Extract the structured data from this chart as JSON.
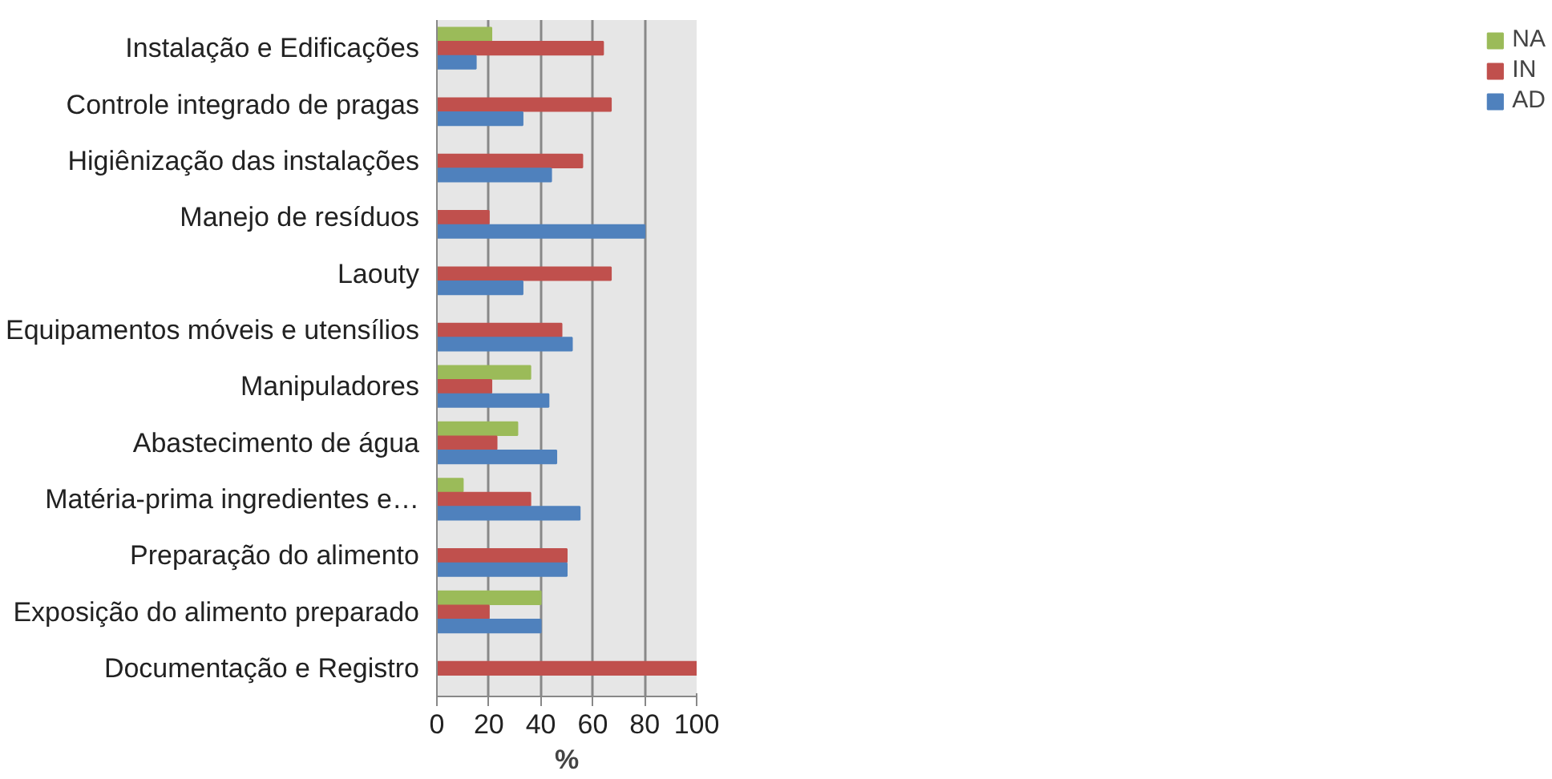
{
  "chart_data": {
    "type": "bar",
    "orientation": "horizontal",
    "xlabel": "%",
    "categories": [
      "Instalação e Edificações",
      "Controle integrado de pragas",
      "Higiênização das instalações",
      "Manejo de resíduos",
      "Laouty",
      "Equipamentos móveis e utensílios",
      "Manipuladores",
      "Abastecimento de água",
      "Matéria-prima ingredientes e…",
      "Preparação do alimento",
      "Exposição do alimento preparado",
      "Documentação e Registro"
    ],
    "series": [
      {
        "name": "NA",
        "color": "#9bbb59",
        "values": [
          21,
          null,
          null,
          null,
          null,
          null,
          36,
          31,
          10,
          null,
          40,
          null
        ]
      },
      {
        "name": "IN",
        "color": "#c0504d",
        "values": [
          64,
          67,
          56,
          20,
          67,
          48,
          21,
          23,
          36,
          50,
          20,
          100
        ]
      },
      {
        "name": "AD",
        "color": "#4f81bd",
        "values": [
          15,
          33,
          44,
          80,
          33,
          52,
          43,
          46,
          55,
          50,
          40,
          0
        ]
      }
    ],
    "xlim": [
      0,
      100
    ],
    "xticks": [
      0,
      20,
      40,
      60,
      80,
      100
    ],
    "grid": "x",
    "legend": "right"
  }
}
